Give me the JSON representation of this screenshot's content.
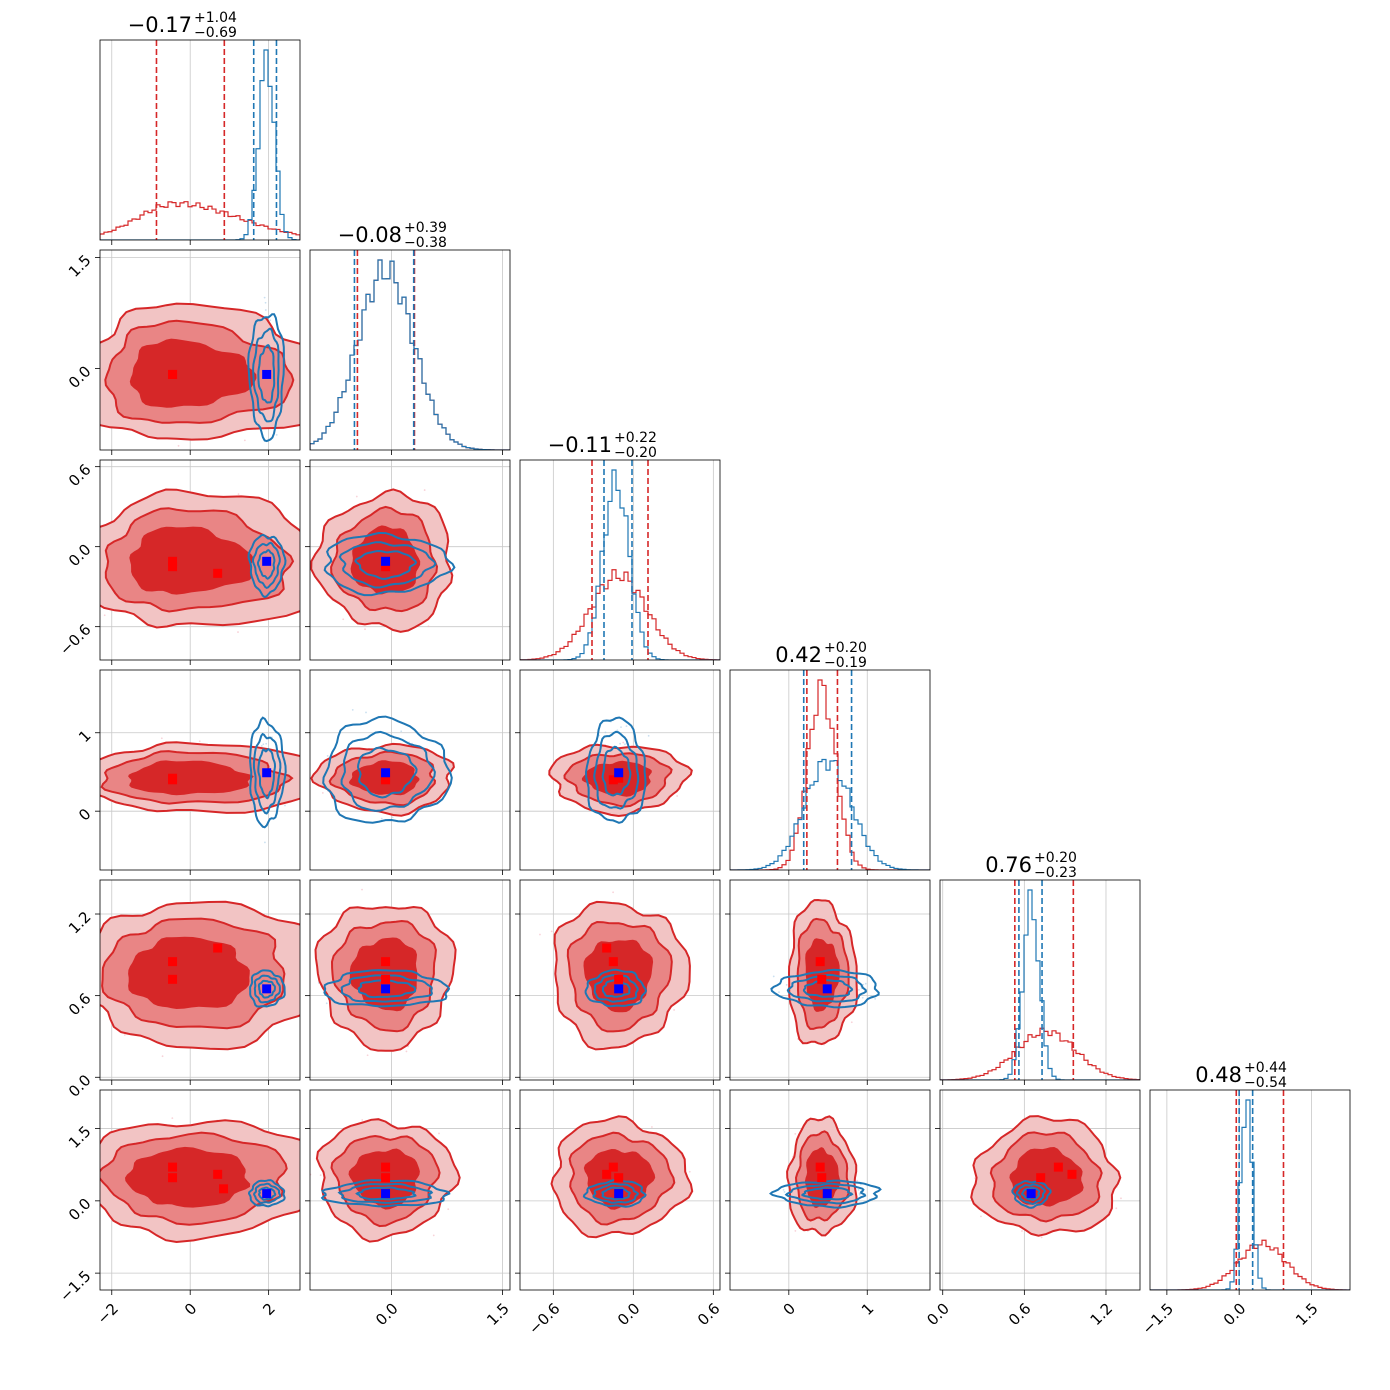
{
  "chart_data": {
    "type": "corner",
    "colors": {
      "red": "#d62728",
      "blue": "#1f77b4",
      "red_marker": "#ff0000",
      "blue_marker": "#0000ff",
      "grid": "#c8c8c8"
    },
    "params": [
      {
        "range": [
          -2.3,
          2.8
        ],
        "ticks": [
          -2,
          0,
          2
        ],
        "tick_labels": [
          "−2",
          "0",
          "2"
        ],
        "red": {
          "mean": -0.35,
          "sd": 1.0,
          "skew": 0.6
        },
        "blue": {
          "mean": 1.95,
          "sd": 0.2
        },
        "red_markers": [
          -0.45,
          -0.45,
          0.7,
          0.85
        ],
        "blue_marker": 1.95,
        "red_quantiles": [
          -0.86,
          0.87
        ],
        "blue_quantiles": [
          1.62,
          2.2
        ],
        "title": {
          "main": "−0.17",
          "plus": "+1.04",
          "minus": "−0.69"
        }
      },
      {
        "range": [
          -1.1,
          1.6
        ],
        "ticks": [
          0.0,
          1.5
        ],
        "tick_labels": [
          "0.0",
          "1.5"
        ],
        "red": {
          "mean": -0.08,
          "sd": 0.38
        },
        "blue": {
          "mean": -0.08,
          "sd": 0.38
        },
        "red_markers": [
          -0.08,
          -0.08
        ],
        "blue_marker": -0.08,
        "red_quantiles": [
          -0.46,
          0.31
        ],
        "blue_quantiles": [
          -0.5,
          0.3
        ],
        "title": {
          "main": "−0.08",
          "plus": "+0.39",
          "minus": "−0.38"
        }
      },
      {
        "range": [
          -0.85,
          0.65
        ],
        "ticks": [
          -0.6,
          0.0,
          0.6
        ],
        "tick_labels": [
          "−0.6",
          "0.0",
          "0.6"
        ],
        "red": {
          "mean": -0.11,
          "sd": 0.21
        },
        "blue": {
          "mean": -0.13,
          "sd": 0.1
        },
        "red_markers": [
          -0.11,
          -0.15,
          -0.2
        ],
        "blue_marker": -0.11,
        "red_quantiles": [
          -0.31,
          0.11
        ],
        "blue_quantiles": [
          -0.22,
          -0.01
        ],
        "title": {
          "main": "−0.11",
          "plus": "+0.22",
          "minus": "−0.20"
        }
      },
      {
        "range": [
          -0.75,
          1.8
        ],
        "ticks": [
          0,
          1
        ],
        "tick_labels": [
          "0",
          "1"
        ],
        "red": {
          "mean": 0.42,
          "sd": 0.18
        },
        "blue": {
          "mean": 0.5,
          "sd": 0.3
        },
        "red_markers": [
          0.42,
          0.4
        ],
        "blue_marker": 0.49,
        "red_quantiles": [
          0.23,
          0.62
        ],
        "blue_quantiles": [
          0.19,
          0.8
        ],
        "title": {
          "main": "0.42",
          "plus": "+0.20",
          "minus": "−0.19"
        }
      },
      {
        "range": [
          -0.02,
          1.45
        ],
        "ticks": [
          0.0,
          0.6,
          1.2
        ],
        "tick_labels": [
          "0.0",
          "0.6",
          "1.2"
        ],
        "red": {
          "mean": 0.76,
          "sd": 0.22
        },
        "blue": {
          "mean": 0.65,
          "sd": 0.06
        },
        "red_markers": [
          0.72,
          0.85,
          0.95
        ],
        "blue_marker": 0.65,
        "red_quantiles": [
          0.53,
          0.96
        ],
        "blue_quantiles": [
          0.56,
          0.73
        ],
        "title": {
          "main": "0.76",
          "plus": "+0.20",
          "minus": "−0.23"
        }
      },
      {
        "range": [
          -1.85,
          2.3
        ],
        "ticks": [
          -1.5,
          0.0,
          1.5
        ],
        "tick_labels": [
          "−1.5",
          "0.0",
          "1.5"
        ],
        "red": {
          "mean": 0.48,
          "sd": 0.5
        },
        "blue": {
          "mean": 0.15,
          "sd": 0.12
        },
        "red_markers": [
          0.48,
          0.7,
          0.55,
          0.25
        ],
        "blue_marker": 0.15,
        "red_quantiles": [
          -0.06,
          0.92
        ],
        "blue_quantiles": [
          0.0,
          0.28
        ],
        "title": {
          "main": "0.48",
          "plus": "+0.44",
          "minus": "−0.54"
        }
      }
    ]
  }
}
